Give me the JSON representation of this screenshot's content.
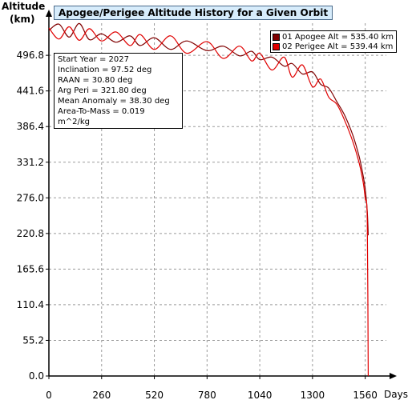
{
  "chart_data": {
    "type": "line",
    "title": "Apogee/Perigee Altitude History for a Given Orbit",
    "ylabel": "Altitude",
    "yunit": "(km)",
    "xlabel": "Days",
    "xlim": [
      0,
      1680
    ],
    "ylim": [
      0,
      551.5
    ],
    "x_ticks": [
      "0",
      "260",
      "520",
      "780",
      "1040",
      "1300",
      "1560"
    ],
    "y_ticks": [
      "0.0",
      "55.2",
      "110.4",
      "165.6",
      "220.8",
      "276.0",
      "331.2",
      "386.4",
      "441.6",
      "496.8"
    ],
    "grid": true,
    "legend_position": "top-right",
    "series": [
      {
        "name": "01 Apogee Alt = 535.40 km",
        "color": "#800000",
        "x": [
          0,
          50,
          100,
          150,
          200,
          260,
          330,
          400,
          450,
          520,
          600,
          680,
          780,
          860,
          940,
          1000,
          1040,
          1100,
          1160,
          1200,
          1250,
          1300,
          1340,
          1380,
          1420,
          1460,
          1500,
          1530,
          1550,
          1560,
          1570,
          1575
        ],
        "y": [
          535.4,
          545.0,
          525.0,
          546.0,
          521.0,
          530.0,
          517.0,
          527.0,
          512.0,
          524.0,
          506.0,
          519.0,
          504.0,
          511.0,
          496.0,
          503.0,
          490.0,
          494.0,
          480.0,
          484.0,
          468.0,
          471.0,
          452.0,
          446.0,
          425.0,
          403.0,
          372.0,
          340.0,
          310.0,
          290.0,
          255.0,
          218.0
        ]
      },
      {
        "name": "02 Perigee Alt = 539.44 km",
        "color": "#e00000",
        "x": [
          0,
          50,
          100,
          150,
          200,
          260,
          330,
          400,
          450,
          520,
          600,
          680,
          780,
          860,
          940,
          1000,
          1040,
          1100,
          1160,
          1200,
          1250,
          1300,
          1340,
          1380,
          1420,
          1460,
          1500,
          1530,
          1550,
          1560,
          1570,
          1575
        ],
        "y": [
          539.4,
          522.0,
          541.0,
          520.0,
          538.0,
          519.0,
          533.0,
          512.0,
          529.0,
          506.0,
          527.0,
          500.0,
          518.0,
          492.0,
          511.0,
          488.0,
          500.0,
          474.0,
          494.0,
          463.0,
          482.0,
          448.0,
          460.0,
          432.0,
          421.0,
          395.0,
          362.0,
          330.0,
          300.0,
          275.0,
          242.0,
          0.0
        ]
      }
    ],
    "annotations": [
      "Start Year =  2027",
      "Inclination = 97.52 deg",
      "RAAN = 30.80 deg",
      "Arg Peri = 321.80 deg",
      "Mean Anomaly = 38.30 deg",
      "Area-To-Mass = 0.019 m^2/kg"
    ]
  }
}
